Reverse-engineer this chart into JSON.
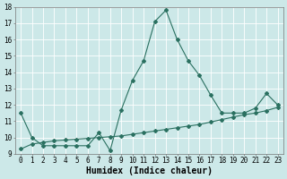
{
  "xlabel": "Humidex (Indice chaleur)",
  "background_color": "#cce8e8",
  "grid_color": "#ffffff",
  "line_color": "#2a7060",
  "xlim": [
    -0.5,
    23.5
  ],
  "ylim": [
    9,
    18
  ],
  "yticks": [
    9,
    10,
    11,
    12,
    13,
    14,
    15,
    16,
    17,
    18
  ],
  "xticks": [
    0,
    1,
    2,
    3,
    4,
    5,
    6,
    7,
    8,
    9,
    10,
    11,
    12,
    13,
    14,
    15,
    16,
    17,
    18,
    19,
    20,
    21,
    22,
    23
  ],
  "xtick_labels": [
    "0",
    "1",
    "2",
    "3",
    "4",
    "5",
    "6",
    "7",
    "8",
    "9",
    "10",
    "11",
    "12",
    "13",
    "14",
    "15",
    "16",
    "17",
    "18",
    "19",
    "20",
    "21",
    "22",
    "23"
  ],
  "series1_x": [
    0,
    1,
    2,
    3,
    4,
    5,
    6,
    7,
    8,
    9,
    10,
    11,
    12,
    13,
    14,
    15,
    16,
    17,
    18,
    19,
    20,
    21,
    22,
    23
  ],
  "series1_y": [
    11.5,
    10.0,
    9.5,
    9.5,
    9.5,
    9.5,
    9.5,
    10.3,
    9.2,
    11.7,
    13.5,
    14.7,
    17.1,
    17.8,
    16.0,
    14.7,
    13.8,
    12.6,
    11.5,
    11.5,
    11.5,
    11.8,
    12.7,
    12.0
  ],
  "series2_x": [
    0,
    1,
    2,
    3,
    4,
    5,
    6,
    7,
    8,
    9,
    10,
    11,
    12,
    13,
    14,
    15,
    16,
    17,
    18,
    19,
    20,
    21,
    22,
    23
  ],
  "series2_y": [
    9.3,
    9.6,
    9.7,
    9.8,
    9.85,
    9.9,
    9.95,
    10.0,
    10.05,
    10.1,
    10.2,
    10.3,
    10.4,
    10.5,
    10.6,
    10.7,
    10.8,
    10.95,
    11.1,
    11.25,
    11.4,
    11.5,
    11.65,
    11.85
  ],
  "marker": "D",
  "markersize": 2.0,
  "linewidth": 0.8,
  "xlabel_fontsize": 7,
  "tick_fontsize": 5.5
}
